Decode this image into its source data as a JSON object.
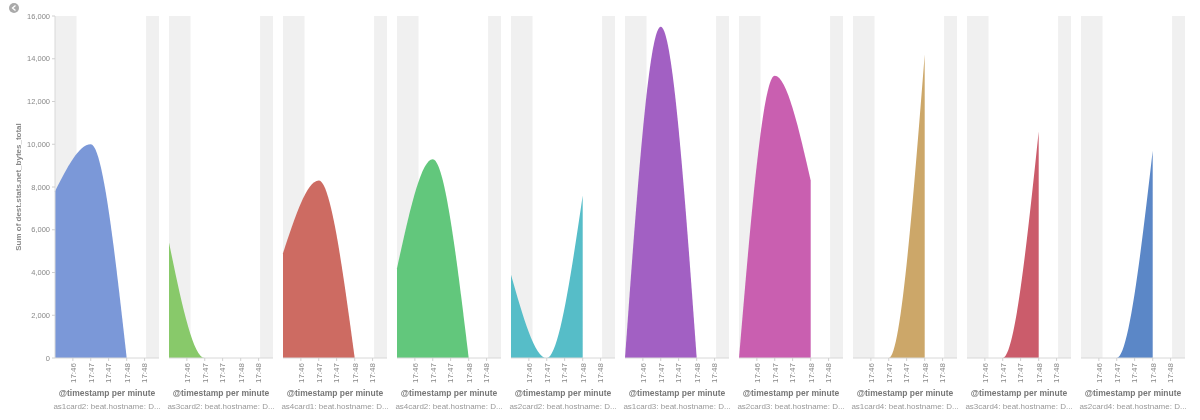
{
  "chart_data": [
    {
      "type": "area",
      "xlabel": "@timestamp per minute",
      "subtitle": "as1card2: beat.hostname: D...",
      "ylabel": "Sum of dest.stats.net_bytes_total",
      "x": [
        17.7667,
        17.7833,
        17.8
      ],
      "values": [
        7800,
        10000,
        0
      ],
      "color": "#7b98d8",
      "xlim": [
        17.7667,
        17.815
      ],
      "ylim": [
        0,
        16000
      ],
      "yticks": [
        0,
        {
          "value": 2000,
          "label": "2,000"
        },
        {
          "value": 4000,
          "label": "4,000"
        },
        {
          "value": 6000,
          "label": "6,000"
        },
        {
          "value": 8000,
          "label": "8,000"
        },
        {
          "value": 10000,
          "label": "10,000"
        },
        {
          "value": 12000,
          "label": "12,000"
        },
        {
          "value": 14000,
          "label": "14,000"
        },
        {
          "value": 16000,
          "label": "16,000"
        }
      ],
      "xticks": [
        {
          "value": 17.775,
          "label": "17:46"
        },
        {
          "value": 17.7833,
          "label": "17:47"
        },
        {
          "value": 17.7916,
          "label": "17:47"
        },
        {
          "value": 17.8,
          "label": "17:48"
        },
        {
          "value": 17.8083,
          "label": "17:48"
        }
      ],
      "bands": [
        {
          "axis": "x",
          "from": 17.7667,
          "to": 17.7767,
          "color": "#f0f0f0"
        },
        {
          "axis": "x",
          "from": 17.809,
          "to": 17.815,
          "color": "#f0f0f0"
        }
      ]
    },
    {
      "type": "area",
      "xlabel": "@timestamp per minute",
      "subtitle": "as3card2: beat.hostname: D...",
      "x": [
        17.7667,
        17.7833,
        17.8
      ],
      "values": [
        5400,
        0,
        0
      ],
      "color": "#88c96a",
      "xlim": [
        17.7667,
        17.815
      ],
      "ylim": [
        0,
        16000
      ],
      "tick_labels": "x",
      "xticks": [
        {
          "value": 17.775,
          "label": "17:46"
        },
        {
          "value": 17.7833,
          "label": "17:47"
        },
        {
          "value": 17.7916,
          "label": "17:47"
        },
        {
          "value": 17.8,
          "label": "17:48"
        },
        {
          "value": 17.8083,
          "label": "17:48"
        }
      ],
      "bands": [
        {
          "axis": "x",
          "from": 17.7667,
          "to": 17.7767,
          "color": "#f0f0f0"
        },
        {
          "axis": "x",
          "from": 17.809,
          "to": 17.815,
          "color": "#f0f0f0"
        }
      ]
    },
    {
      "type": "area",
      "xlabel": "@timestamp per minute",
      "subtitle": "as4card1: beat.hostname: D...",
      "x": [
        17.7667,
        17.7833,
        17.8
      ],
      "values": [
        4900,
        8300,
        0
      ],
      "color": "#cd6b62",
      "xlim": [
        17.7667,
        17.815
      ],
      "ylim": [
        0,
        16000
      ],
      "tick_labels": "x",
      "xticks": [
        {
          "value": 17.775,
          "label": "17:46"
        },
        {
          "value": 17.7833,
          "label": "17:47"
        },
        {
          "value": 17.7916,
          "label": "17:47"
        },
        {
          "value": 17.8,
          "label": "17:48"
        },
        {
          "value": 17.8083,
          "label": "17:48"
        }
      ],
      "bands": [
        {
          "axis": "x",
          "from": 17.7667,
          "to": 17.7767,
          "color": "#f0f0f0"
        },
        {
          "axis": "x",
          "from": 17.809,
          "to": 17.815,
          "color": "#f0f0f0"
        }
      ]
    },
    {
      "type": "area",
      "xlabel": "@timestamp per minute",
      "subtitle": "as4card2: beat.hostname: D...",
      "x": [
        17.7667,
        17.7833,
        17.8
      ],
      "values": [
        4200,
        9300,
        0
      ],
      "color": "#62c77c",
      "xlim": [
        17.7667,
        17.815
      ],
      "ylim": [
        0,
        16000
      ],
      "tick_labels": "x",
      "xticks": [
        {
          "value": 17.775,
          "label": "17:46"
        },
        {
          "value": 17.7833,
          "label": "17:47"
        },
        {
          "value": 17.7916,
          "label": "17:47"
        },
        {
          "value": 17.8,
          "label": "17:48"
        },
        {
          "value": 17.8083,
          "label": "17:48"
        }
      ],
      "bands": [
        {
          "axis": "x",
          "from": 17.7667,
          "to": 17.7767,
          "color": "#f0f0f0"
        },
        {
          "axis": "x",
          "from": 17.809,
          "to": 17.815,
          "color": "#f0f0f0"
        }
      ]
    },
    {
      "type": "area",
      "xlabel": "@timestamp per minute",
      "subtitle": "as2card2: beat.hostname: D...",
      "x": [
        17.7667,
        17.7833,
        17.8
      ],
      "values": [
        3900,
        0,
        7600
      ],
      "color": "#56bdc8",
      "xlim": [
        17.7667,
        17.815
      ],
      "ylim": [
        0,
        16000
      ],
      "tick_labels": "x",
      "xticks": [
        {
          "value": 17.775,
          "label": "17:46"
        },
        {
          "value": 17.7833,
          "label": "17:47"
        },
        {
          "value": 17.7916,
          "label": "17:47"
        },
        {
          "value": 17.8,
          "label": "17:48"
        },
        {
          "value": 17.8083,
          "label": "17:48"
        }
      ],
      "bands": [
        {
          "axis": "x",
          "from": 17.7667,
          "to": 17.7767,
          "color": "#f0f0f0"
        },
        {
          "axis": "x",
          "from": 17.809,
          "to": 17.815,
          "color": "#f0f0f0"
        }
      ]
    },
    {
      "type": "area",
      "xlabel": "@timestamp per minute",
      "subtitle": "as1card3: beat.hostname: D...",
      "x": [
        17.7667,
        17.7833,
        17.8
      ],
      "values": [
        0,
        15500,
        0
      ],
      "color": "#a260c3",
      "xlim": [
        17.7667,
        17.815
      ],
      "ylim": [
        0,
        16000
      ],
      "tick_labels": "x",
      "xticks": [
        {
          "value": 17.775,
          "label": "17:46"
        },
        {
          "value": 17.7833,
          "label": "17:47"
        },
        {
          "value": 17.7916,
          "label": "17:47"
        },
        {
          "value": 17.8,
          "label": "17:48"
        },
        {
          "value": 17.8083,
          "label": "17:48"
        }
      ],
      "bands": [
        {
          "axis": "x",
          "from": 17.7667,
          "to": 17.7767,
          "color": "#f0f0f0"
        },
        {
          "axis": "x",
          "from": 17.809,
          "to": 17.815,
          "color": "#f0f0f0"
        }
      ]
    },
    {
      "type": "area",
      "xlabel": "@timestamp per minute",
      "subtitle": "as2card3: beat.hostname: D...",
      "x": [
        17.7667,
        17.7833,
        17.8
      ],
      "values": [
        0,
        13200,
        8300
      ],
      "color": "#c95fb0",
      "xlim": [
        17.7667,
        17.815
      ],
      "ylim": [
        0,
        16000
      ],
      "tick_labels": "x",
      "xticks": [
        {
          "value": 17.775,
          "label": "17:46"
        },
        {
          "value": 17.7833,
          "label": "17:47"
        },
        {
          "value": 17.7916,
          "label": "17:47"
        },
        {
          "value": 17.8,
          "label": "17:48"
        },
        {
          "value": 17.8083,
          "label": "17:48"
        }
      ],
      "bands": [
        {
          "axis": "x",
          "from": 17.7667,
          "to": 17.7767,
          "color": "#f0f0f0"
        },
        {
          "axis": "x",
          "from": 17.809,
          "to": 17.815,
          "color": "#f0f0f0"
        }
      ]
    },
    {
      "type": "area",
      "xlabel": "@timestamp per minute",
      "subtitle": "as1card4: beat.hostname: D...",
      "x": [
        17.7667,
        17.7833,
        17.8
      ],
      "values": [
        0,
        0,
        14200
      ],
      "color": "#cca769",
      "xlim": [
        17.7667,
        17.815
      ],
      "ylim": [
        0,
        16000
      ],
      "tick_labels": "x",
      "xticks": [
        {
          "value": 17.775,
          "label": "17:46"
        },
        {
          "value": 17.7833,
          "label": "17:47"
        },
        {
          "value": 17.7916,
          "label": "17:47"
        },
        {
          "value": 17.8,
          "label": "17:48"
        },
        {
          "value": 17.8083,
          "label": "17:48"
        }
      ],
      "bands": [
        {
          "axis": "x",
          "from": 17.7667,
          "to": 17.7767,
          "color": "#f0f0f0"
        },
        {
          "axis": "x",
          "from": 17.809,
          "to": 17.815,
          "color": "#f0f0f0"
        }
      ]
    },
    {
      "type": "area",
      "xlabel": "@timestamp per minute",
      "subtitle": "as3card4: beat.hostname: D...",
      "x": [
        17.7667,
        17.7833,
        17.8
      ],
      "values": [
        0,
        0,
        10600
      ],
      "color": "#cb5c6b",
      "xlim": [
        17.7667,
        17.815
      ],
      "ylim": [
        0,
        16000
      ],
      "tick_labels": "x",
      "xticks": [
        {
          "value": 17.775,
          "label": "17:46"
        },
        {
          "value": 17.7833,
          "label": "17:47"
        },
        {
          "value": 17.7916,
          "label": "17:47"
        },
        {
          "value": 17.8,
          "label": "17:48"
        },
        {
          "value": 17.8083,
          "label": "17:48"
        }
      ],
      "bands": [
        {
          "axis": "x",
          "from": 17.7667,
          "to": 17.7767,
          "color": "#f0f0f0"
        },
        {
          "axis": "x",
          "from": 17.809,
          "to": 17.815,
          "color": "#f0f0f0"
        }
      ]
    },
    {
      "type": "area",
      "xlabel": "@timestamp per minute",
      "subtitle": "as2card4: beat.hostname: D...",
      "x": [
        17.7667,
        17.7833,
        17.8
      ],
      "values": [
        0,
        0,
        9700
      ],
      "color": "#5b87c7",
      "xlim": [
        17.7667,
        17.815
      ],
      "ylim": [
        0,
        16000
      ],
      "tick_labels": "x",
      "xticks": [
        {
          "value": 17.775,
          "label": "17:46"
        },
        {
          "value": 17.7833,
          "label": "17:47"
        },
        {
          "value": 17.7916,
          "label": "17:47"
        },
        {
          "value": 17.8,
          "label": "17:48"
        },
        {
          "value": 17.8083,
          "label": "17:48"
        }
      ],
      "bands": [
        {
          "axis": "x",
          "from": 17.7667,
          "to": 17.7767,
          "color": "#f0f0f0"
        },
        {
          "axis": "x",
          "from": 17.809,
          "to": 17.815,
          "color": "#f0f0f0"
        }
      ]
    }
  ]
}
